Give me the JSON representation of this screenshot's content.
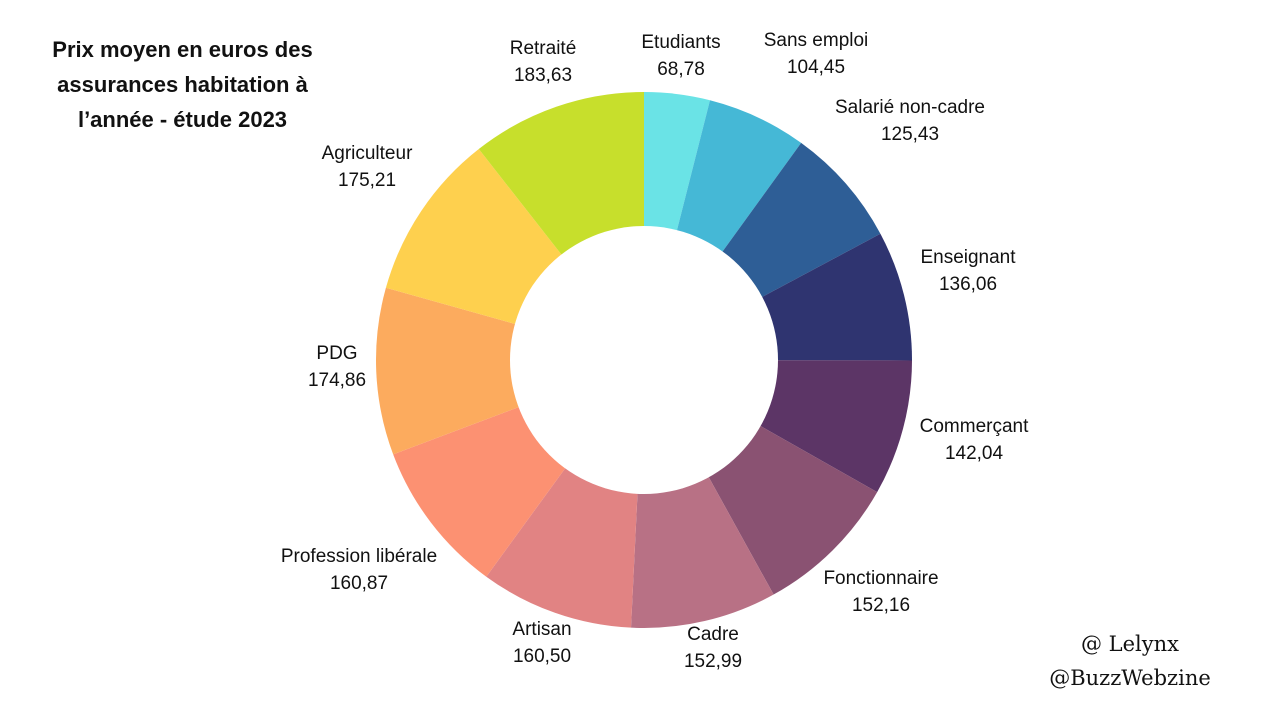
{
  "chart_data": {
    "type": "pie",
    "title_lines": [
      "Prix moyen en euros des",
      "assurances habitation à",
      "l’année - étude 2023"
    ],
    "slices": [
      {
        "label": "Etudiants",
        "value_label": "68,78",
        "value": 68.78,
        "color": "#6ae3e6"
      },
      {
        "label": "Sans emploi",
        "value_label": "104,45",
        "value": 104.45,
        "color": "#45b8d6"
      },
      {
        "label": "Salarié non-cadre",
        "value_label": "125,43",
        "value": 125.43,
        "color": "#2e5e96"
      },
      {
        "label": "Enseignant",
        "value_label": "136,06",
        "value": 136.06,
        "color": "#2f3470"
      },
      {
        "label": "Commerçant",
        "value_label": "142,04",
        "value": 142.04,
        "color": "#5c3566"
      },
      {
        "label": "Fonctionnaire",
        "value_label": "152,16",
        "value": 152.16,
        "color": "#8a5272"
      },
      {
        "label": "Cadre",
        "value_label": "152,99",
        "value": 152.99,
        "color": "#b87185"
      },
      {
        "label": "Artisan",
        "value_label": "160,50",
        "value": 160.5,
        "color": "#e18383"
      },
      {
        "label": "Profession libérale",
        "value_label": "160,87",
        "value": 160.87,
        "color": "#fc9172"
      },
      {
        "label": "PDG",
        "value_label": "174,86",
        "value": 174.86,
        "color": "#fcab5e"
      },
      {
        "label": "Agriculteur",
        "value_label": "175,21",
        "value": 175.21,
        "color": "#fed04e"
      },
      {
        "label": "Retraité",
        "value_label": "183,63",
        "value": 183.63,
        "color": "#c7df2c"
      }
    ],
    "donut": true,
    "legend": "none",
    "labels": "outside"
  },
  "credits": {
    "line1": "@ Lelynx",
    "line2": "@BuzzWebzine"
  }
}
